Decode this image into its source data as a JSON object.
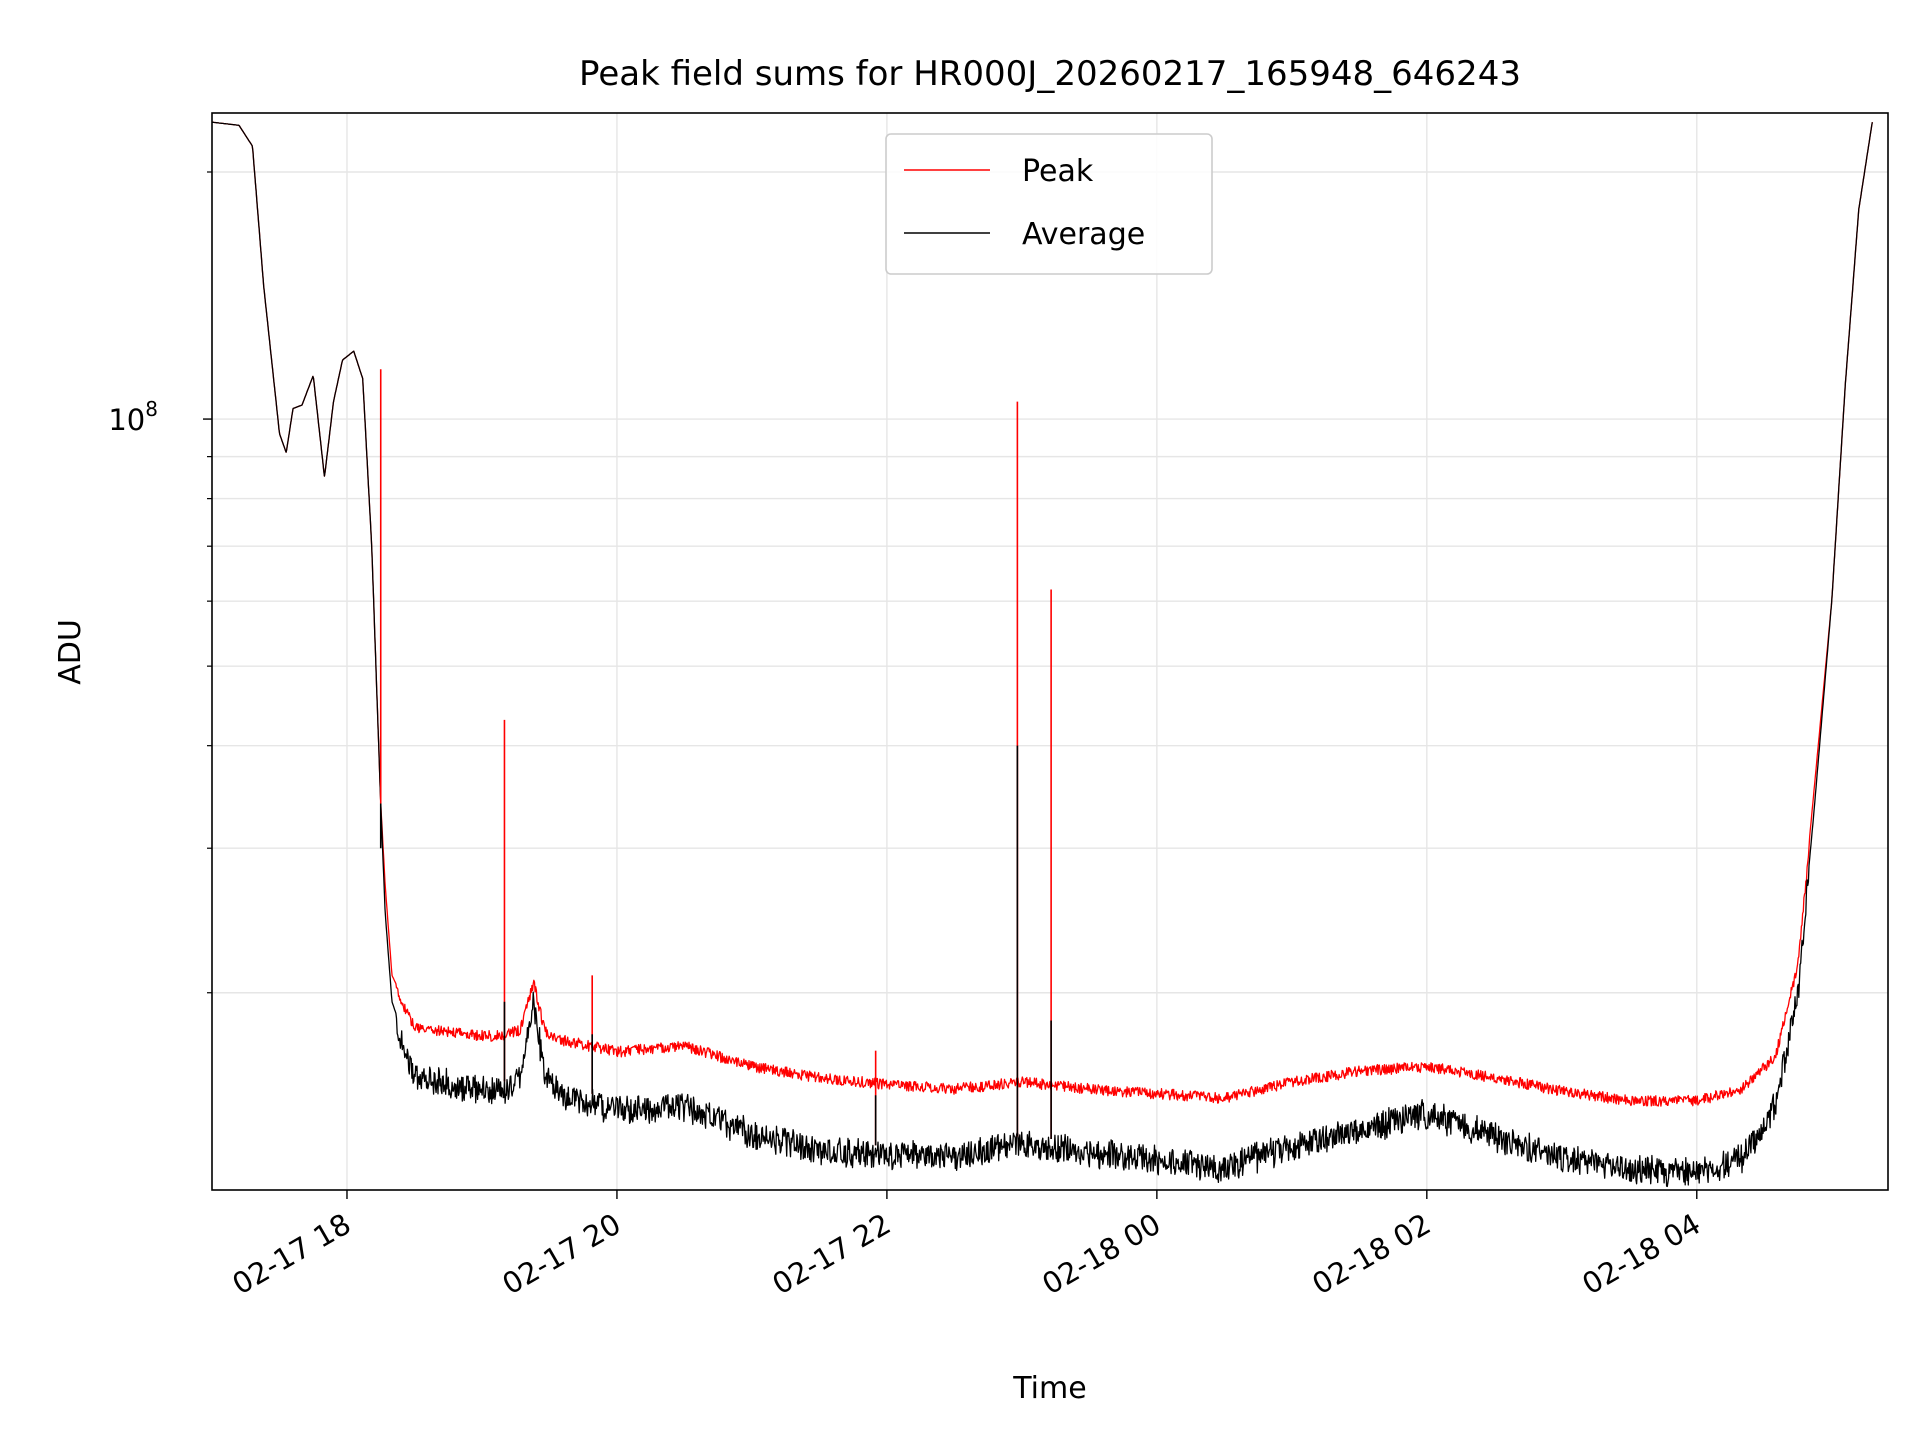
{
  "chart_data": {
    "type": "line",
    "title": "Peak field sums for HR000J_20260217_165948_646243",
    "xlabel": "Time",
    "ylabel": "ADU",
    "yscale": "log",
    "grid": true,
    "legend_position": "upper center",
    "ylim": [
      11500000,
      236000000
    ],
    "xlim": [
      "2026-02-17 17:00",
      "2026-02-18 05:25"
    ],
    "x_ticks": [
      {
        "label": "02-17 18",
        "time": "2026-02-17 18:00"
      },
      {
        "label": "02-17 20",
        "time": "2026-02-17 20:00"
      },
      {
        "label": "02-17 22",
        "time": "2026-02-17 22:00"
      },
      {
        "label": "02-18 00",
        "time": "2026-02-18 00:00"
      },
      {
        "label": "02-18 02",
        "time": "2026-02-18 02:00"
      },
      {
        "label": "02-18 04",
        "time": "2026-02-18 04:00"
      }
    ],
    "y_major_ticks": [
      {
        "label": "10",
        "exponent": "8",
        "value": 100000000
      }
    ],
    "y_minor_ticks": [
      20000000,
      30000000,
      40000000,
      50000000,
      60000000,
      70000000,
      80000000,
      90000000,
      200000000
    ],
    "series": [
      {
        "name": "Peak",
        "color": "#ff0000",
        "points": [
          [
            "2026-02-17 17:00",
            230000000
          ],
          [
            "2026-02-17 17:12",
            228000000
          ],
          [
            "2026-02-17 17:18",
            215000000
          ],
          [
            "2026-02-17 17:23",
            145000000
          ],
          [
            "2026-02-17 17:30",
            96000000
          ],
          [
            "2026-02-17 17:33",
            91000000
          ],
          [
            "2026-02-17 17:36",
            103000000
          ],
          [
            "2026-02-17 17:40",
            104000000
          ],
          [
            "2026-02-17 17:45",
            113000000
          ],
          [
            "2026-02-17 17:50",
            85000000
          ],
          [
            "2026-02-17 17:54",
            105000000
          ],
          [
            "2026-02-17 17:58",
            118000000
          ],
          [
            "2026-02-17 18:03",
            121000000
          ],
          [
            "2026-02-17 18:07",
            112000000
          ],
          [
            "2026-02-17 18:11",
            70000000
          ],
          [
            "2026-02-17 18:15",
            34000000
          ],
          [
            "2026-02-17 18:17",
            27000000
          ],
          [
            "2026-02-17 18:20",
            21000000
          ],
          [
            "2026-02-17 18:30",
            18400000
          ],
          [
            "2026-02-17 19:00",
            18000000
          ],
          [
            "2026-02-17 19:10",
            18000000
          ],
          [
            "2026-02-17 19:17",
            18300000
          ],
          [
            "2026-02-17 19:23",
            20900000
          ],
          [
            "2026-02-17 19:28",
            18200000
          ],
          [
            "2026-02-17 19:35",
            17800000
          ],
          [
            "2026-02-17 20:00",
            17200000
          ],
          [
            "2026-02-17 20:30",
            17500000
          ],
          [
            "2026-02-17 21:00",
            16500000
          ],
          [
            "2026-02-17 21:30",
            16000000
          ],
          [
            "2026-02-17 22:00",
            15700000
          ],
          [
            "2026-02-17 22:30",
            15500000
          ],
          [
            "2026-02-17 23:00",
            15800000
          ],
          [
            "2026-02-17 23:30",
            15500000
          ],
          [
            "2026-02-18 00:00",
            15300000
          ],
          [
            "2026-02-18 00:30",
            15100000
          ],
          [
            "2026-02-18 01:00",
            15800000
          ],
          [
            "2026-02-18 01:30",
            16300000
          ],
          [
            "2026-02-18 02:00",
            16500000
          ],
          [
            "2026-02-18 02:30",
            16000000
          ],
          [
            "2026-02-18 03:00",
            15400000
          ],
          [
            "2026-02-18 03:30",
            15000000
          ],
          [
            "2026-02-18 04:00",
            15000000
          ],
          [
            "2026-02-18 04:20",
            15500000
          ],
          [
            "2026-02-18 04:35",
            17000000
          ],
          [
            "2026-02-18 04:45",
            22000000
          ],
          [
            "2026-02-18 04:52",
            35000000
          ],
          [
            "2026-02-18 05:00",
            60000000
          ],
          [
            "2026-02-18 05:06",
            110000000
          ],
          [
            "2026-02-18 05:12",
            180000000
          ],
          [
            "2026-02-18 05:18",
            230000000
          ]
        ]
      },
      {
        "name": "Average",
        "color": "#000000",
        "points": [
          [
            "2026-02-17 17:00",
            230000000
          ],
          [
            "2026-02-17 17:12",
            228000000
          ],
          [
            "2026-02-17 17:18",
            215000000
          ],
          [
            "2026-02-17 17:23",
            145000000
          ],
          [
            "2026-02-17 17:30",
            96000000
          ],
          [
            "2026-02-17 17:33",
            91000000
          ],
          [
            "2026-02-17 17:36",
            103000000
          ],
          [
            "2026-02-17 17:40",
            104000000
          ],
          [
            "2026-02-17 17:45",
            113000000
          ],
          [
            "2026-02-17 17:50",
            85000000
          ],
          [
            "2026-02-17 17:54",
            105000000
          ],
          [
            "2026-02-17 17:58",
            118000000
          ],
          [
            "2026-02-17 18:03",
            121000000
          ],
          [
            "2026-02-17 18:07",
            112000000
          ],
          [
            "2026-02-17 18:11",
            70000000
          ],
          [
            "2026-02-17 18:15",
            34000000
          ],
          [
            "2026-02-17 18:17",
            25000000
          ],
          [
            "2026-02-17 18:20",
            19500000
          ],
          [
            "2026-02-17 18:30",
            16200000
          ],
          [
            "2026-02-17 19:00",
            15600000
          ],
          [
            "2026-02-17 19:10",
            15600000
          ],
          [
            "2026-02-17 19:17",
            16000000
          ],
          [
            "2026-02-17 19:23",
            20000000
          ],
          [
            "2026-02-17 19:28",
            16200000
          ],
          [
            "2026-02-17 19:35",
            15400000
          ],
          [
            "2026-02-17 20:00",
            14800000
          ],
          [
            "2026-02-17 20:30",
            14900000
          ],
          [
            "2026-02-17 21:00",
            13800000
          ],
          [
            "2026-02-17 21:30",
            13200000
          ],
          [
            "2026-02-17 22:00",
            13000000
          ],
          [
            "2026-02-17 22:30",
            13000000
          ],
          [
            "2026-02-17 23:00",
            13400000
          ],
          [
            "2026-02-17 23:30",
            13100000
          ],
          [
            "2026-02-18 00:00",
            12800000
          ],
          [
            "2026-02-18 00:30",
            12600000
          ],
          [
            "2026-02-18 01:00",
            13300000
          ],
          [
            "2026-02-18 01:30",
            14000000
          ],
          [
            "2026-02-18 02:00",
            14600000
          ],
          [
            "2026-02-18 02:30",
            13700000
          ],
          [
            "2026-02-18 03:00",
            12900000
          ],
          [
            "2026-02-18 03:30",
            12500000
          ],
          [
            "2026-02-18 04:00",
            12400000
          ],
          [
            "2026-02-18 04:20",
            12900000
          ],
          [
            "2026-02-18 04:35",
            15000000
          ],
          [
            "2026-02-18 04:45",
            20500000
          ],
          [
            "2026-02-18 04:52",
            33000000
          ],
          [
            "2026-02-18 05:00",
            60000000
          ],
          [
            "2026-02-18 05:06",
            110000000
          ],
          [
            "2026-02-18 05:12",
            180000000
          ],
          [
            "2026-02-18 05:18",
            230000000
          ]
        ]
      }
    ],
    "spikes": [
      {
        "time": "2026-02-17 18:15",
        "peak": 115000000,
        "average": 30000000
      },
      {
        "time": "2026-02-17 19:10",
        "peak": 43000000,
        "average": 19500000
      },
      {
        "time": "2026-02-17 19:49",
        "peak": 21000000,
        "average": 17800000
      },
      {
        "time": "2026-02-17 21:55",
        "peak": 17000000,
        "average": 15000000
      },
      {
        "time": "2026-02-17 22:58",
        "peak": 105000000,
        "average": 40000000
      },
      {
        "time": "2026-02-17 23:13",
        "peak": 62000000,
        "average": 18500000
      }
    ]
  }
}
